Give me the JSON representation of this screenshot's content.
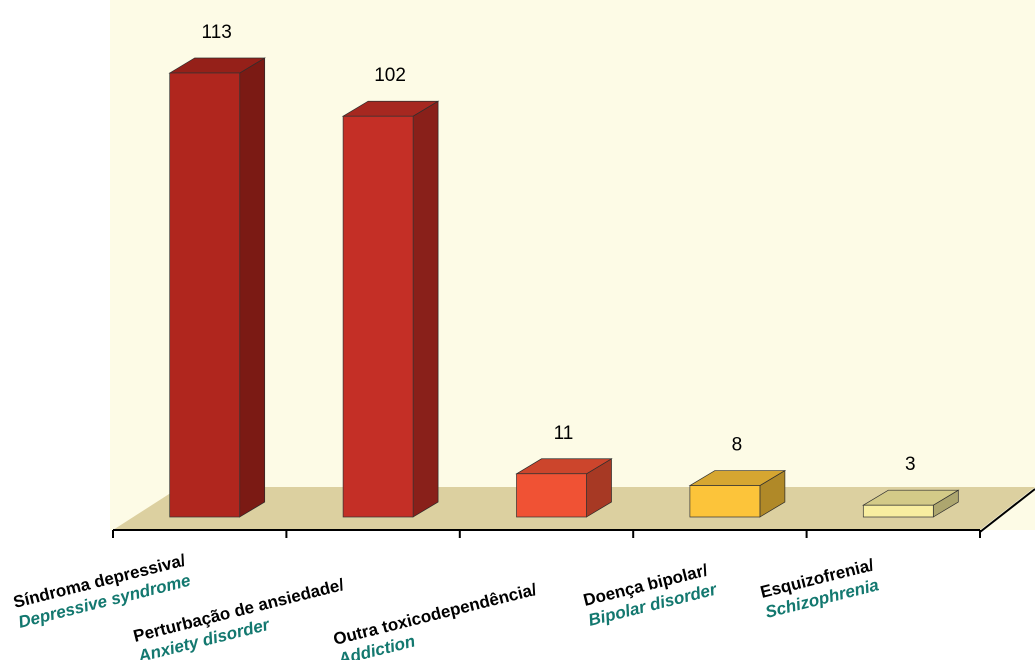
{
  "chart_data": {
    "type": "bar3d",
    "categories": [
      "Síndroma depressiva/",
      "Perturbação  de ansiedade/",
      "Outra toxicodependência/",
      "Doença bipolar/",
      "Esquizofrenia/"
    ],
    "category_translations": [
      "Depressive syndrome",
      "Anxiety disorder",
      "Addiction",
      "Bipolar disorder",
      "Schizophrenia"
    ],
    "values": [
      113,
      102,
      11,
      8,
      3
    ],
    "colors": [
      "#b0261e",
      "#c42f26",
      "#f05234",
      "#fcc43a",
      "#f8eea0"
    ]
  }
}
